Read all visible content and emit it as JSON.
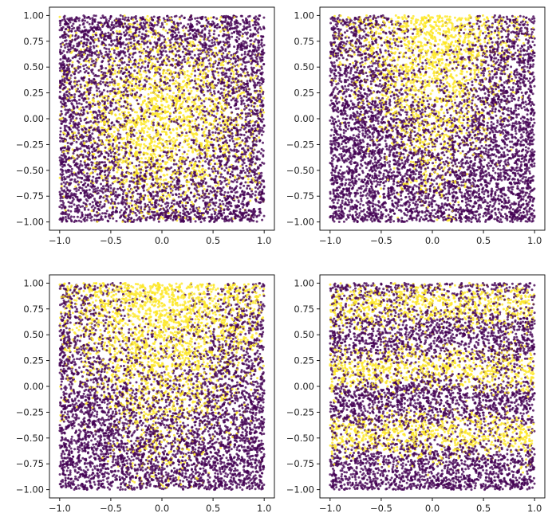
{
  "chart_data": [
    {
      "type": "scatter",
      "panel": "top-left",
      "xlim": [
        -1.1,
        1.1
      ],
      "ylim": [
        -1.08,
        1.08
      ],
      "xticks": [
        "−1.0",
        "−0.5",
        "0.0",
        "0.5",
        "1.0"
      ],
      "xtick_values": [
        -1.0,
        -0.5,
        0.0,
        0.5,
        1.0
      ],
      "yticks": [
        "−1.00",
        "−0.75",
        "−0.50",
        "−0.25",
        "0.00",
        "0.25",
        "0.50",
        "0.75",
        "1.00"
      ],
      "ytick_values": [
        -1.0,
        -0.75,
        -0.5,
        -0.25,
        0.0,
        0.25,
        0.5,
        0.75,
        1.0
      ],
      "x_range": [
        -1,
        1
      ],
      "y_range": [
        -1,
        1
      ],
      "pattern": "radial",
      "center": [
        0.0,
        0.0
      ],
      "spread": 0.5
    },
    {
      "type": "scatter",
      "panel": "top-right",
      "xlim": [
        -1.1,
        1.1
      ],
      "ylim": [
        -1.08,
        1.08
      ],
      "xticks": [
        "−1.0",
        "−0.5",
        "0.0",
        "0.5",
        "1.0"
      ],
      "xtick_values": [
        -1.0,
        -0.5,
        0.0,
        0.5,
        1.0
      ],
      "yticks": [
        "−1.00",
        "−0.75",
        "−0.50",
        "−0.25",
        "0.00",
        "0.25",
        "0.50",
        "0.75",
        "1.00"
      ],
      "ytick_values": [
        -1.0,
        -0.75,
        -0.5,
        -0.25,
        0.0,
        0.25,
        0.5,
        0.75,
        1.0
      ],
      "x_range": [
        -1,
        1
      ],
      "y_range": [
        -1,
        1
      ],
      "pattern": "wedge",
      "center": [
        0.0,
        1.0
      ],
      "spread": 0.32
    },
    {
      "type": "scatter",
      "panel": "bottom-left",
      "xlim": [
        -1.1,
        1.1
      ],
      "ylim": [
        -1.08,
        1.08
      ],
      "xticks": [
        "−1.0",
        "−0.5",
        "0.0",
        "0.5",
        "1.0"
      ],
      "xtick_values": [
        -1.0,
        -0.5,
        0.0,
        0.5,
        1.0
      ],
      "yticks": [
        "−1.00",
        "−0.75",
        "−0.50",
        "−0.25",
        "0.00",
        "0.25",
        "0.50",
        "0.75",
        "1.00"
      ],
      "ytick_values": [
        -1.0,
        -0.75,
        -0.5,
        -0.25,
        0.0,
        0.25,
        0.5,
        0.75,
        1.0
      ],
      "x_range": [
        -1,
        1
      ],
      "y_range": [
        -1,
        1
      ],
      "pattern": "wedge",
      "center": [
        0.0,
        1.0
      ],
      "spread": 0.5
    },
    {
      "type": "scatter",
      "panel": "bottom-right",
      "xlim": [
        -1.1,
        1.1
      ],
      "ylim": [
        -1.08,
        1.08
      ],
      "xticks": [
        "−1.0",
        "−0.5",
        "0.0",
        "0.5",
        "1.0"
      ],
      "xtick_values": [
        -1.0,
        -0.5,
        0.0,
        0.5,
        1.0
      ],
      "yticks": [
        "−1.00",
        "−0.75",
        "−0.50",
        "−0.25",
        "0.00",
        "0.25",
        "0.50",
        "0.75",
        "1.00"
      ],
      "ytick_values": [
        -1.0,
        -0.75,
        -0.5,
        -0.25,
        0.0,
        0.25,
        0.5,
        0.75,
        1.0
      ],
      "x_range": [
        -1,
        1
      ],
      "y_range": [
        -1,
        1
      ],
      "pattern": "bands",
      "band_centers": [
        0.8,
        0.18,
        -0.45
      ],
      "spread": 0.12
    }
  ],
  "colors": {
    "class_0": "#440154",
    "class_1": "#fde725",
    "axis": "#000000",
    "text": "#222222"
  },
  "grid": false,
  "legend": "none"
}
